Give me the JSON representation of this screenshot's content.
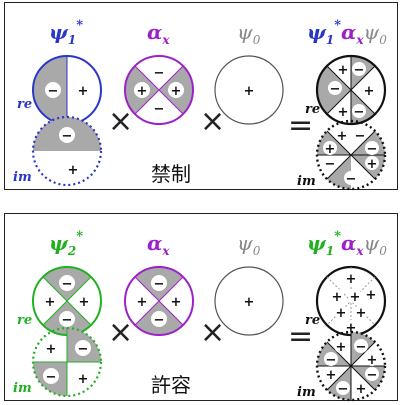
{
  "colors": {
    "blue": "#2a36c8",
    "purple": "#9a22c8",
    "green": "#22b022",
    "gray_label": "#888888",
    "shade": "#a9a9a9",
    "black": "#111111"
  },
  "top": {
    "label_psi1": "ψ",
    "label_psi1_sub": "1",
    "label_psi1_sup": "*",
    "label_alpha": "α",
    "label_alpha_sub": "x",
    "label_psi0": "ψ",
    "label_psi0_sub": "0",
    "label_result_psi": "ψ",
    "label_result_sub1": "1",
    "label_result_sup": "*",
    "label_result_alpha": "α",
    "label_result_alpha_sub": "x",
    "label_result_psi0": "ψ",
    "label_result_psi0_sub": "0",
    "re": "re",
    "im": "im",
    "times": "×",
    "equals": "=",
    "caption": "禁制"
  },
  "bottom": {
    "label_psi2": "ψ",
    "label_psi2_sub": "2",
    "label_psi2_sup": "*",
    "label_alpha": "α",
    "label_alpha_sub": "x",
    "label_psi0": "ψ",
    "label_psi0_sub": "0",
    "label_result_psi": "ψ",
    "label_result_sub1": "1",
    "label_result_sup": "*",
    "label_result_alpha": "α",
    "label_result_alpha_sub": "x",
    "label_result_psi0": "ψ",
    "label_result_psi0_sub": "0",
    "re": "re",
    "im": "im",
    "times": "×",
    "equals": "=",
    "caption": "許容"
  },
  "signs": {
    "plus": "+",
    "minus": "−"
  }
}
